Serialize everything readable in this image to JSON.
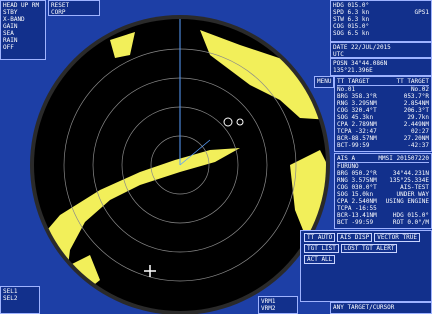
{
  "left_panel": {
    "lines": [
      "HEAD UP RM",
      "STBY",
      "X-BAND",
      "GAIN",
      "SEA",
      "RAIN",
      "OFF"
    ]
  },
  "top_bar": {
    "items": [
      "RESET",
      "CORP"
    ]
  },
  "own_ship": {
    "lines": [
      "HDG 015.0°",
      "SPD 6.3 kn",
      "STW 6.3 kn",
      "COG 015.0°",
      "SOG 6.5 kn"
    ],
    "source": "GPS1"
  },
  "date": {
    "lines": [
      "DATE 22/JUL/2015",
      "UTC"
    ]
  },
  "position": {
    "lines": [
      "POSN 34°44.086N",
      "135°21.396E"
    ]
  },
  "menu": "MENU",
  "targets": {
    "header": [
      "TT TARGET",
      "TT TARGET"
    ],
    "rows": [
      [
        "No.01",
        "No.02"
      ],
      [
        "BRG 358.3°R",
        "053.7°R"
      ],
      [
        "RNG 3.295NM",
        "2.854NM"
      ],
      [
        "COG 320.4°T",
        "206.3°T"
      ],
      [
        "SOG 45.3kn",
        "29.7kn"
      ],
      [
        "CPA 2.789NM",
        "2.449NM"
      ],
      [
        "TCPA -32:47",
        "02:27"
      ],
      [
        "BCR-88.57NM",
        "27.20NM"
      ],
      [
        "BCT-99:59",
        "-42:37"
      ]
    ]
  },
  "ais": {
    "header": [
      "AIS A",
      "MMSI 201507220"
    ],
    "rows": [
      [
        "FURUNO"
      ],
      [
        "BRG 050.2°R",
        "34°44.231N"
      ],
      [
        "RNG 3.575NM",
        "135°25.334E"
      ],
      [
        "COG 030.0°T",
        "AIS-TEST"
      ],
      [
        "SOG 15.0kn",
        "UNDER WAY"
      ],
      [
        "CPA 2.540NM",
        "USING ENGINE"
      ],
      [
        "TCPA -16:55"
      ],
      [
        "BCR-13.41NM",
        "HDG 015.0°"
      ],
      [
        "BCT -99:59",
        "ROT 0.0°/M"
      ]
    ]
  },
  "buttons": [
    "TT AUTO",
    "AIS DISP",
    "VECTOR TRUE",
    "TGT LIST",
    "LOST TGT ALERT",
    "ACT ALL"
  ],
  "footer": "ANY TARGET/CURSOR",
  "left_bottom": {
    "lines": [
      "SEL1",
      "SEL2"
    ]
  },
  "vrm": {
    "lines": [
      "VRM1",
      "VRM2"
    ]
  }
}
